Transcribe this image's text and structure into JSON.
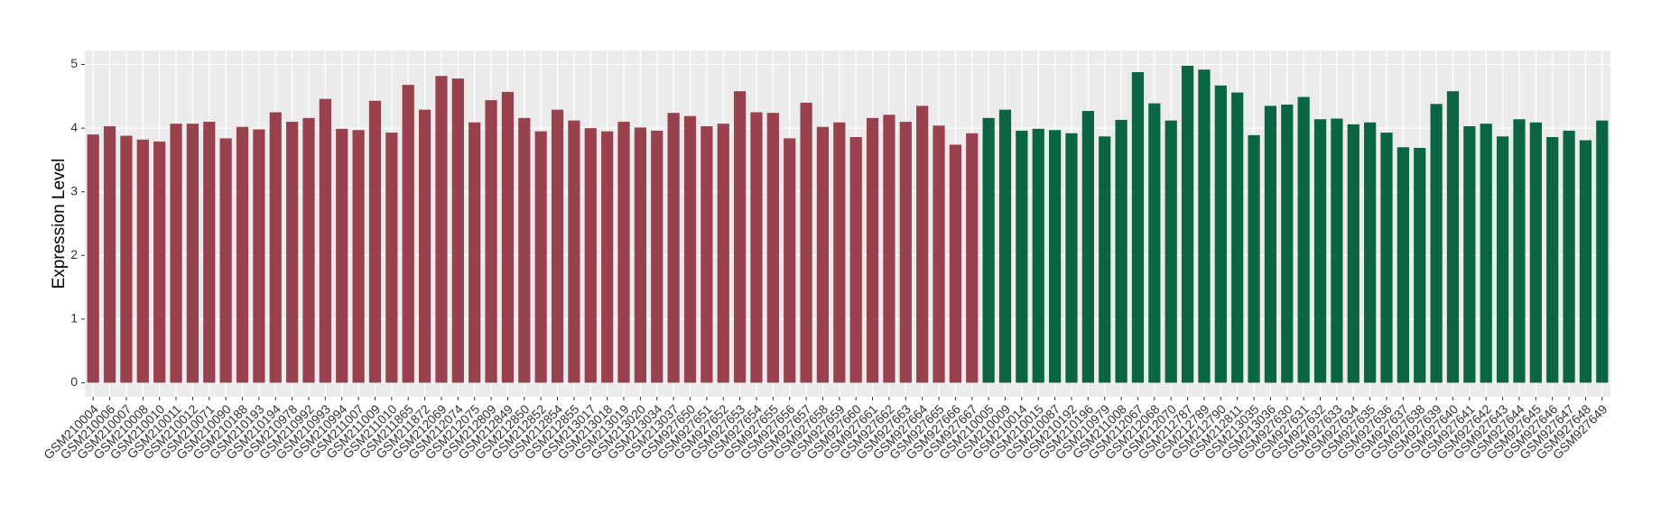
{
  "chart_data": {
    "type": "bar",
    "y_label": "Expression Level",
    "categories": [
      "GSM210004",
      "GSM210006",
      "GSM210007",
      "GSM210008",
      "GSM210010",
      "GSM210011",
      "GSM210012",
      "GSM210071",
      "GSM210090",
      "GSM210188",
      "GSM210193",
      "GSM210194",
      "GSM210978",
      "GSM210992",
      "GSM210993",
      "GSM210994",
      "GSM211007",
      "GSM211009",
      "GSM211010",
      "GSM211865",
      "GSM211872",
      "GSM212069",
      "GSM212074",
      "GSM212075",
      "GSM212809",
      "GSM212849",
      "GSM212850",
      "GSM212852",
      "GSM212854",
      "GSM212855",
      "GSM213017",
      "GSM213018",
      "GSM213019",
      "GSM213020",
      "GSM213034",
      "GSM213037",
      "GSM927650",
      "GSM927651",
      "GSM927652",
      "GSM927653",
      "GSM927654",
      "GSM927655",
      "GSM927656",
      "GSM927657",
      "GSM927658",
      "GSM927659",
      "GSM927660",
      "GSM927661",
      "GSM927662",
      "GSM927663",
      "GSM927664",
      "GSM927665",
      "GSM927666",
      "GSM927667",
      "GSM210005",
      "GSM210009",
      "GSM210014",
      "GSM210015",
      "GSM210087",
      "GSM210192",
      "GSM210196",
      "GSM210979",
      "GSM211008",
      "GSM212067",
      "GSM212068",
      "GSM212070",
      "GSM212787",
      "GSM212789",
      "GSM212790",
      "GSM212811",
      "GSM213035",
      "GSM213036",
      "GSM927630",
      "GSM927631",
      "GSM927632",
      "GSM927633",
      "GSM927634",
      "GSM927635",
      "GSM927636",
      "GSM927637",
      "GSM927638",
      "GSM927639",
      "GSM927640",
      "GSM927641",
      "GSM927642",
      "GSM927643",
      "GSM927644",
      "GSM927645",
      "GSM927646",
      "GSM927647",
      "GSM927648",
      "GSM927649"
    ],
    "values": [
      3.9,
      4.03,
      3.88,
      3.82,
      3.79,
      4.07,
      4.07,
      4.1,
      3.84,
      4.02,
      3.98,
      4.25,
      4.1,
      4.16,
      4.46,
      3.99,
      3.97,
      4.43,
      3.93,
      4.68,
      4.29,
      4.82,
      4.78,
      4.09,
      4.44,
      4.57,
      4.16,
      3.95,
      4.29,
      4.12,
      4.0,
      3.95,
      4.1,
      4.01,
      3.96,
      4.24,
      4.19,
      4.03,
      4.07,
      4.58,
      4.25,
      4.24,
      3.84,
      4.4,
      4.02,
      4.09,
      3.86,
      4.16,
      4.21,
      4.1,
      4.35,
      4.04,
      3.74,
      3.92,
      4.16,
      4.29,
      3.96,
      3.99,
      3.97,
      3.92,
      4.27,
      3.87,
      4.13,
      4.88,
      4.39,
      4.12,
      4.98,
      4.92,
      4.67,
      4.56,
      3.89,
      4.35,
      4.37,
      4.49,
      4.14,
      4.15,
      4.06,
      4.09,
      3.93,
      3.7,
      3.69,
      4.38,
      4.58,
      4.03,
      4.07,
      3.87,
      4.14,
      4.09,
      3.86,
      3.96,
      3.81,
      4.12
    ],
    "colors": [
      "#9a4150",
      "#9a4150",
      "#9a4150",
      "#9a4150",
      "#9a4150",
      "#9a4150",
      "#9a4150",
      "#9a4150",
      "#9a4150",
      "#9a4150",
      "#9a4150",
      "#9a4150",
      "#9a4150",
      "#9a4150",
      "#9a4150",
      "#9a4150",
      "#9a4150",
      "#9a4150",
      "#9a4150",
      "#9a4150",
      "#9a4150",
      "#9a4150",
      "#9a4150",
      "#9a4150",
      "#9a4150",
      "#9a4150",
      "#9a4150",
      "#9a4150",
      "#9a4150",
      "#9a4150",
      "#9a4150",
      "#9a4150",
      "#9a4150",
      "#9a4150",
      "#9a4150",
      "#9a4150",
      "#9a4150",
      "#9a4150",
      "#9a4150",
      "#9a4150",
      "#9a4150",
      "#9a4150",
      "#9a4150",
      "#9a4150",
      "#9a4150",
      "#9a4150",
      "#9a4150",
      "#9a4150",
      "#9a4150",
      "#9a4150",
      "#9a4150",
      "#9a4150",
      "#9a4150",
      "#9a4150",
      "#0a6642",
      "#0a6642",
      "#0a6642",
      "#0a6642",
      "#0a6642",
      "#0a6642",
      "#0a6642",
      "#0a6642",
      "#0a6642",
      "#0a6642",
      "#0a6642",
      "#0a6642",
      "#0a6642",
      "#0a6642",
      "#0a6642",
      "#0a6642",
      "#0a6642",
      "#0a6642",
      "#0a6642",
      "#0a6642",
      "#0a6642",
      "#0a6642",
      "#0a6642",
      "#0a6642",
      "#0a6642",
      "#0a6642",
      "#0a6642",
      "#0a6642",
      "#0a6642",
      "#0a6642",
      "#0a6642",
      "#0a6642",
      "#0a6642",
      "#0a6642",
      "#0a6642",
      "#0a6642",
      "#0a6642",
      "#0a6642"
    ],
    "ylim": [
      -0.22,
      5.22
    ],
    "yticks": [
      0,
      1,
      2,
      3,
      4,
      5
    ],
    "grid": true
  }
}
